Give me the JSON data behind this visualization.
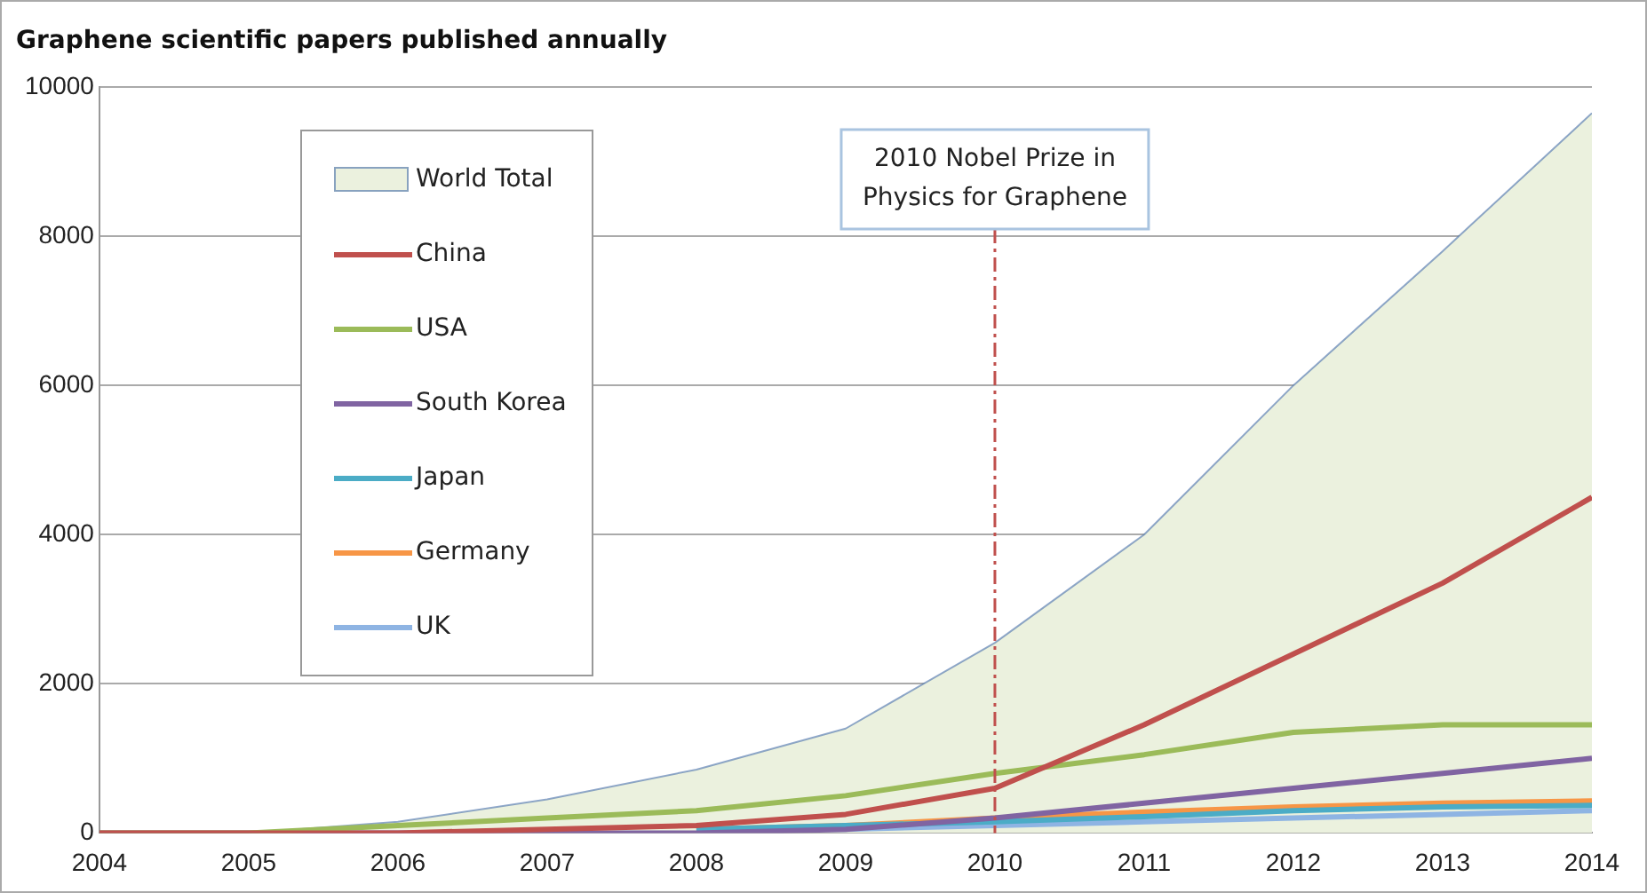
{
  "chart_data": {
    "type": "line",
    "title": "Graphene scientific papers published annually",
    "x": [
      2004,
      2005,
      2006,
      2007,
      2008,
      2009,
      2010,
      2011,
      2012,
      2013,
      2014
    ],
    "series": [
      {
        "name": "World Total",
        "type": "area",
        "color": "#ebf1de",
        "values": [
          0,
          0,
          150,
          450,
          850,
          1400,
          2550,
          4000,
          6000,
          7800,
          9650
        ]
      },
      {
        "name": "China",
        "color": "#c0504d",
        "values": [
          0,
          0,
          0,
          50,
          100,
          250,
          600,
          1450,
          2400,
          3350,
          4500
        ]
      },
      {
        "name": "USA",
        "color": "#9bbb59",
        "values": [
          0,
          0,
          100,
          200,
          300,
          500,
          800,
          1050,
          1350,
          1450,
          1450
        ]
      },
      {
        "name": "South Korea",
        "color": "#8064a2",
        "values": [
          0,
          0,
          0,
          0,
          0,
          50,
          200,
          400,
          600,
          800,
          1000
        ]
      },
      {
        "name": "Japan",
        "color": "#4bacc6",
        "values": [
          null,
          null,
          null,
          null,
          50,
          100,
          150,
          220,
          300,
          350,
          370
        ]
      },
      {
        "name": "Germany",
        "color": "#f79646",
        "values": [
          null,
          null,
          null,
          null,
          50,
          100,
          200,
          280,
          350,
          400,
          430
        ]
      },
      {
        "name": "UK",
        "color": "#8eb4e3",
        "values": [
          null,
          null,
          null,
          null,
          50,
          50,
          100,
          150,
          200,
          250,
          300
        ]
      }
    ],
    "xlim": [
      2004,
      2014
    ],
    "xticks": [
      2004,
      2005,
      2006,
      2007,
      2008,
      2009,
      2010,
      2011,
      2012,
      2013,
      2014
    ],
    "ylim": [
      0,
      10000
    ],
    "yticks": [
      0,
      2000,
      4000,
      6000,
      8000,
      10000
    ],
    "grid": "y",
    "legend": "top left",
    "marker": "none",
    "ref_lines": [
      {
        "axis": "x",
        "value": 2010,
        "label": "2010 Nobel Prize in Physics for Graphene",
        "color": "#c0504d",
        "line_style": "dashdot"
      }
    ]
  }
}
